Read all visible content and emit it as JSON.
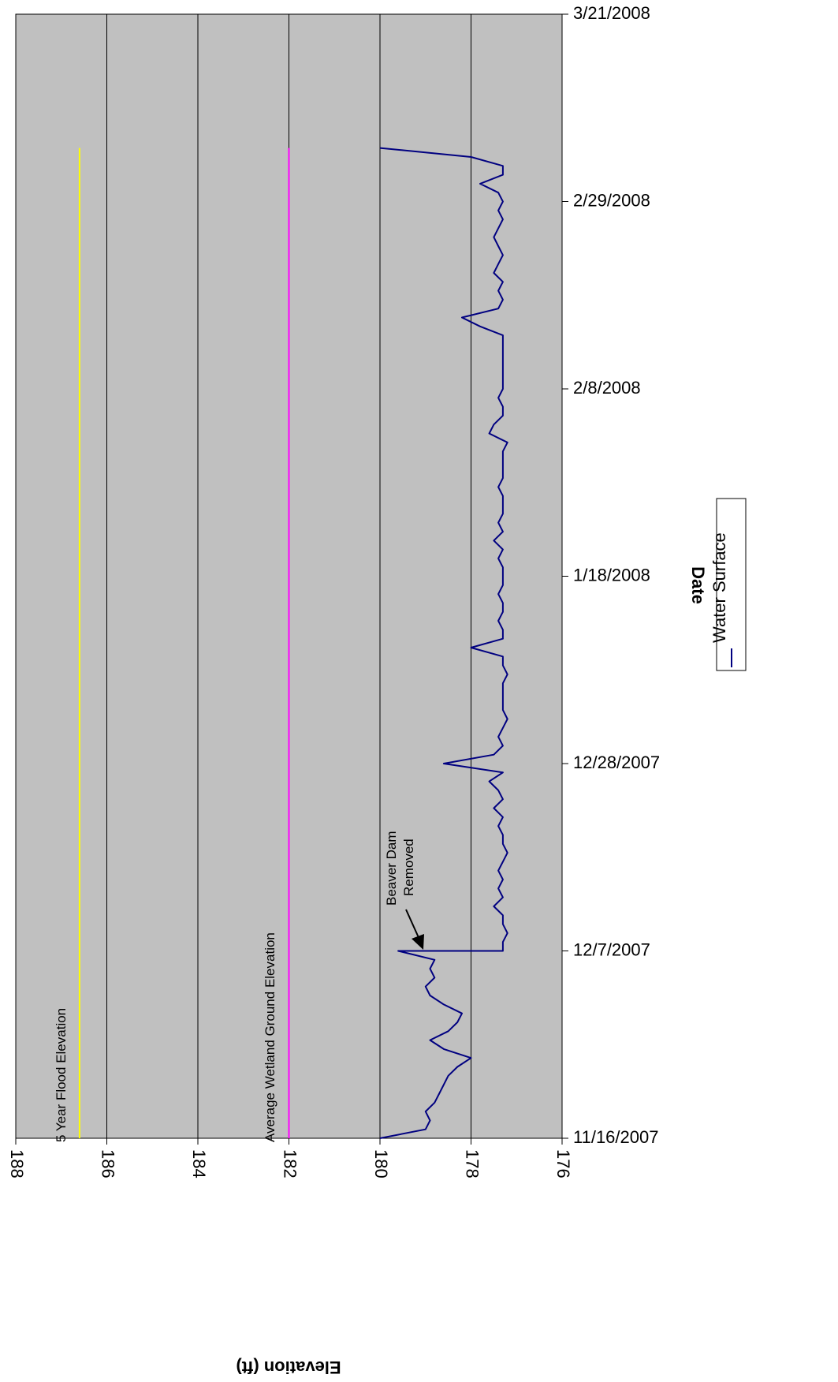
{
  "chart_data": {
    "type": "line",
    "orientation": "rotated-90-clockwise",
    "title": "",
    "xlabel": "Date",
    "ylabel": "Elevation (ft)",
    "x_tick_labels": [
      "11/16/2007",
      "12/7/2007",
      "12/28/2007",
      "1/18/2008",
      "2/8/2008",
      "2/29/2008",
      "3/21/2008"
    ],
    "y_tick_labels": [
      "188",
      "186",
      "184",
      "182",
      "180",
      "178",
      "176"
    ],
    "xlim": [
      "2007-11-16",
      "2008-03-21"
    ],
    "ylim": [
      176,
      188
    ],
    "plot_background": "#c0c0c0",
    "grid": true,
    "legend_position": "right",
    "series": [
      {
        "name": "Water Surface",
        "color": "#000080",
        "x": [
          "2007-11-16",
          "2007-11-17",
          "2007-11-18",
          "2007-11-19",
          "2007-11-20",
          "2007-11-21",
          "2007-11-22",
          "2007-11-23",
          "2007-11-24",
          "2007-11-25",
          "2007-11-26",
          "2007-11-27",
          "2007-11-28",
          "2007-11-29",
          "2007-11-30",
          "2007-12-01",
          "2007-12-02",
          "2007-12-03",
          "2007-12-04",
          "2007-12-05",
          "2007-12-06",
          "2007-12-07",
          "2007-12-07",
          "2007-12-08",
          "2007-12-09",
          "2007-12-10",
          "2007-12-11",
          "2007-12-12",
          "2007-12-13",
          "2007-12-14",
          "2007-12-15",
          "2007-12-16",
          "2007-12-17",
          "2007-12-18",
          "2007-12-19",
          "2007-12-20",
          "2007-12-21",
          "2007-12-22",
          "2007-12-23",
          "2007-12-24",
          "2007-12-25",
          "2007-12-26",
          "2007-12-27",
          "2007-12-28",
          "2007-12-29",
          "2007-12-30",
          "2007-12-31",
          "2008-01-01",
          "2008-01-02",
          "2008-01-03",
          "2008-01-04",
          "2008-01-05",
          "2008-01-06",
          "2008-01-07",
          "2008-01-08",
          "2008-01-09",
          "2008-01-10",
          "2008-01-11",
          "2008-01-12",
          "2008-01-13",
          "2008-01-14",
          "2008-01-15",
          "2008-01-16",
          "2008-01-17",
          "2008-01-18",
          "2008-01-19",
          "2008-01-20",
          "2008-01-21",
          "2008-01-22",
          "2008-01-23",
          "2008-01-24",
          "2008-01-25",
          "2008-01-26",
          "2008-01-27",
          "2008-01-28",
          "2008-01-29",
          "2008-01-30",
          "2008-01-31",
          "2008-02-01",
          "2008-02-02",
          "2008-02-03",
          "2008-02-04",
          "2008-02-05",
          "2008-02-06",
          "2008-02-07",
          "2008-02-08",
          "2008-02-09",
          "2008-02-10",
          "2008-02-11",
          "2008-02-12",
          "2008-02-13",
          "2008-02-14",
          "2008-02-15",
          "2008-02-16",
          "2008-02-17",
          "2008-02-18",
          "2008-02-19",
          "2008-02-20",
          "2008-02-21",
          "2008-02-22",
          "2008-02-23",
          "2008-02-24",
          "2008-02-25",
          "2008-02-26",
          "2008-02-27",
          "2008-02-28",
          "2008-02-29",
          "2008-03-01",
          "2008-03-02",
          "2008-03-03",
          "2008-03-04",
          "2008-03-05",
          "2008-03-06"
        ],
        "y": [
          180.0,
          179.0,
          178.9,
          179.0,
          178.8,
          178.7,
          178.6,
          178.5,
          178.3,
          178.0,
          178.6,
          178.9,
          178.5,
          178.3,
          178.2,
          178.6,
          178.9,
          179.0,
          178.8,
          178.9,
          178.8,
          179.6,
          177.3,
          177.3,
          177.2,
          177.3,
          177.3,
          177.5,
          177.3,
          177.4,
          177.3,
          177.4,
          177.3,
          177.2,
          177.3,
          177.3,
          177.4,
          177.3,
          177.5,
          177.3,
          177.4,
          177.6,
          177.3,
          178.6,
          177.5,
          177.3,
          177.4,
          177.3,
          177.2,
          177.3,
          177.3,
          177.3,
          177.3,
          177.2,
          177.3,
          177.3,
          178.0,
          177.3,
          177.3,
          177.4,
          177.3,
          177.3,
          177.4,
          177.3,
          177.3,
          177.3,
          177.4,
          177.3,
          177.5,
          177.3,
          177.4,
          177.3,
          177.3,
          177.3,
          177.4,
          177.3,
          177.3,
          177.3,
          177.3,
          177.2,
          177.6,
          177.5,
          177.3,
          177.3,
          177.4,
          177.3,
          177.3,
          177.3,
          177.3,
          177.3,
          177.3,
          177.3,
          177.8,
          178.2,
          177.4,
          177.3,
          177.4,
          177.3,
          177.5,
          177.4,
          177.3,
          177.4,
          177.5,
          177.4,
          177.3,
          177.4,
          177.3,
          177.4,
          177.8,
          177.3,
          177.3,
          178.0,
          180.0
        ]
      },
      {
        "name": "Average Wetland Ground Elevation",
        "color": "#ff00ff",
        "x": [
          "2007-11-16",
          "2008-03-06"
        ],
        "y": [
          182.0,
          182.0
        ]
      },
      {
        "name": "5 Year Flood Elevation",
        "color": "#ffff00",
        "x": [
          "2007-11-16",
          "2008-03-06"
        ],
        "y": [
          186.6,
          186.6
        ]
      }
    ],
    "annotations": [
      {
        "text": "Beaver Dam Removed",
        "lines": [
          "Beaver Dam",
          "Removed"
        ],
        "x": "2007-12-07",
        "y": 178.9
      },
      {
        "text": "Average Wetland Ground Elevation"
      },
      {
        "text": "5 Year Flood Elevation"
      }
    ]
  }
}
